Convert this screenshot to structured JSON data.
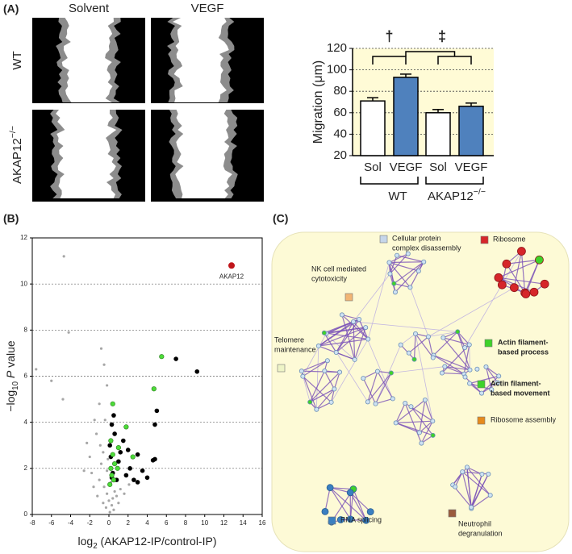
{
  "panel_labels": [
    "(A)",
    "(B)",
    "(C)"
  ],
  "images": {
    "columns": [
      "Solvent",
      "VEGF"
    ],
    "rows": [
      {
        "base": "WT"
      },
      {
        "base": "AKAP12",
        "sup": "−/−"
      }
    ]
  },
  "chart_data": [
    {
      "type": "bar",
      "ylabel": "Migration (μm)",
      "categories": [
        "Sol",
        "VEGF",
        "Sol",
        "VEGF"
      ],
      "values": [
        71,
        93,
        60,
        66
      ],
      "errors": [
        3,
        3,
        3,
        3
      ],
      "colors": [
        "#ffffff",
        "#4f81bd",
        "#ffffff",
        "#4f81bd"
      ],
      "ylim": [
        20,
        120
      ],
      "yticks": [
        20,
        40,
        60,
        80,
        100,
        120
      ],
      "grid": true,
      "background": "#fffbd6",
      "groups": [
        {
          "base": "WT"
        },
        {
          "base": "AKAP12",
          "sup": "−/−"
        }
      ],
      "significance": [
        "†",
        "‡"
      ]
    },
    {
      "type": "scatter",
      "xlabel": {
        "pre": "log",
        "sub": "2",
        "post": " (AKAP12-IP/control-IP)"
      },
      "ylabel": {
        "pre": "−log",
        "sub": "10",
        "italic": "P",
        "post": " value"
      },
      "xlim": [
        -8,
        16
      ],
      "xticks": [
        -8,
        -6,
        -4,
        -2,
        0,
        2,
        4,
        6,
        8,
        10,
        12,
        14,
        16
      ],
      "ylim": [
        0,
        12
      ],
      "yticks": [
        0,
        2,
        4,
        6,
        8,
        10,
        12
      ],
      "grid": true,
      "series": [
        {
          "color": "#a6a6a6",
          "x": [
            -4.7,
            -4.2,
            -0.8,
            -0.5,
            -7.6,
            -6,
            -4.8,
            -1,
            -1.5,
            -2.3,
            -2,
            -1.8,
            -1,
            -0.5,
            -0.2,
            0,
            0.3,
            0.8,
            -0.6,
            1.2,
            1.6,
            -1.2,
            0.5,
            -0.3,
            0.2,
            -0.8,
            -1.3,
            -0.4,
            -0.2,
            2.1,
            1,
            -2.6,
            -0.9,
            -0.1,
            -1.6,
            0.6,
            -0.6,
            0.1,
            -0.2,
            0.4
          ],
          "values": [
            11.2,
            7.9,
            7.2,
            6.5,
            6.3,
            5.8,
            5,
            4.8,
            4.1,
            3.1,
            2.5,
            1.8,
            1.5,
            1.2,
            0.9,
            0.6,
            0.4,
            0.8,
            0.5,
            1.1,
            0.9,
            0.8,
            0.2,
            0.3,
            1.4,
            2.2,
            3.5,
            4.1,
            5.6,
            1.3,
            0.5,
            1.9,
            3,
            2.4,
            1.2,
            1,
            2.7,
            0.1,
            1.9,
            0.7
          ]
        },
        {
          "color": "#000000",
          "x": [
            7,
            9.2,
            5,
            4.8,
            0.5,
            0.3,
            1.5,
            2,
            3,
            4.8,
            4.6,
            1,
            2.2,
            3.5,
            4,
            0.2,
            0.4,
            0.8,
            0.1,
            0.6,
            1.8,
            2.6,
            3,
            1.2,
            0.3
          ],
          "values": [
            6.75,
            6.2,
            4.5,
            3.9,
            4.3,
            3.9,
            3.2,
            2.8,
            2.6,
            2.4,
            2.35,
            2.3,
            2,
            1.9,
            1.6,
            2.5,
            1.8,
            1.5,
            3,
            3.5,
            1.7,
            1.5,
            1.4,
            2.7,
            1.6
          ]
        },
        {
          "color": "#4cdb38",
          "x": [
            5.5,
            4.7,
            0.4,
            1.8,
            1,
            2.5,
            0.6,
            0.2,
            0.3,
            0.5,
            0.1,
            0.9,
            0.4,
            0.2
          ],
          "values": [
            6.85,
            5.45,
            4.8,
            3.8,
            2.9,
            2.5,
            2.2,
            2,
            1.7,
            1.5,
            1.3,
            2,
            2.6,
            3.2
          ]
        },
        {
          "color": "#c0161b",
          "x": [
            12.8
          ],
          "values": [
            10.8
          ]
        }
      ],
      "annotations": [
        {
          "text": "AKAP12",
          "series": 3,
          "index": 0
        }
      ]
    }
  ],
  "network": {
    "labels": [
      {
        "lines": [
          "Cellular protein",
          "complex disassembly"
        ],
        "color": "#c6d6ea"
      },
      {
        "lines": [
          "Ribosome"
        ],
        "color": "#d6262a"
      },
      {
        "lines": [
          "NK cell mediated",
          "cytotoxicity"
        ],
        "color": "#f2b574"
      },
      {
        "lines": [
          "Telomere",
          "maintenance"
        ],
        "color": "#eef4c6"
      },
      {
        "lines": [
          "Actin filament-",
          "based process"
        ],
        "color": "#3ed22a",
        "bold": true
      },
      {
        "lines": [
          "Actin filament-",
          "based movement"
        ],
        "color": "#3ed22a",
        "bold": true
      },
      {
        "lines": [
          "Ribosome assembly"
        ],
        "color": "#e68a1c"
      },
      {
        "lines": [
          "RNA splicing"
        ],
        "color": "#3a7fc1"
      },
      {
        "lines": [
          "Neutrophil",
          "degranulation"
        ],
        "color": "#9a5b3c"
      }
    ]
  }
}
